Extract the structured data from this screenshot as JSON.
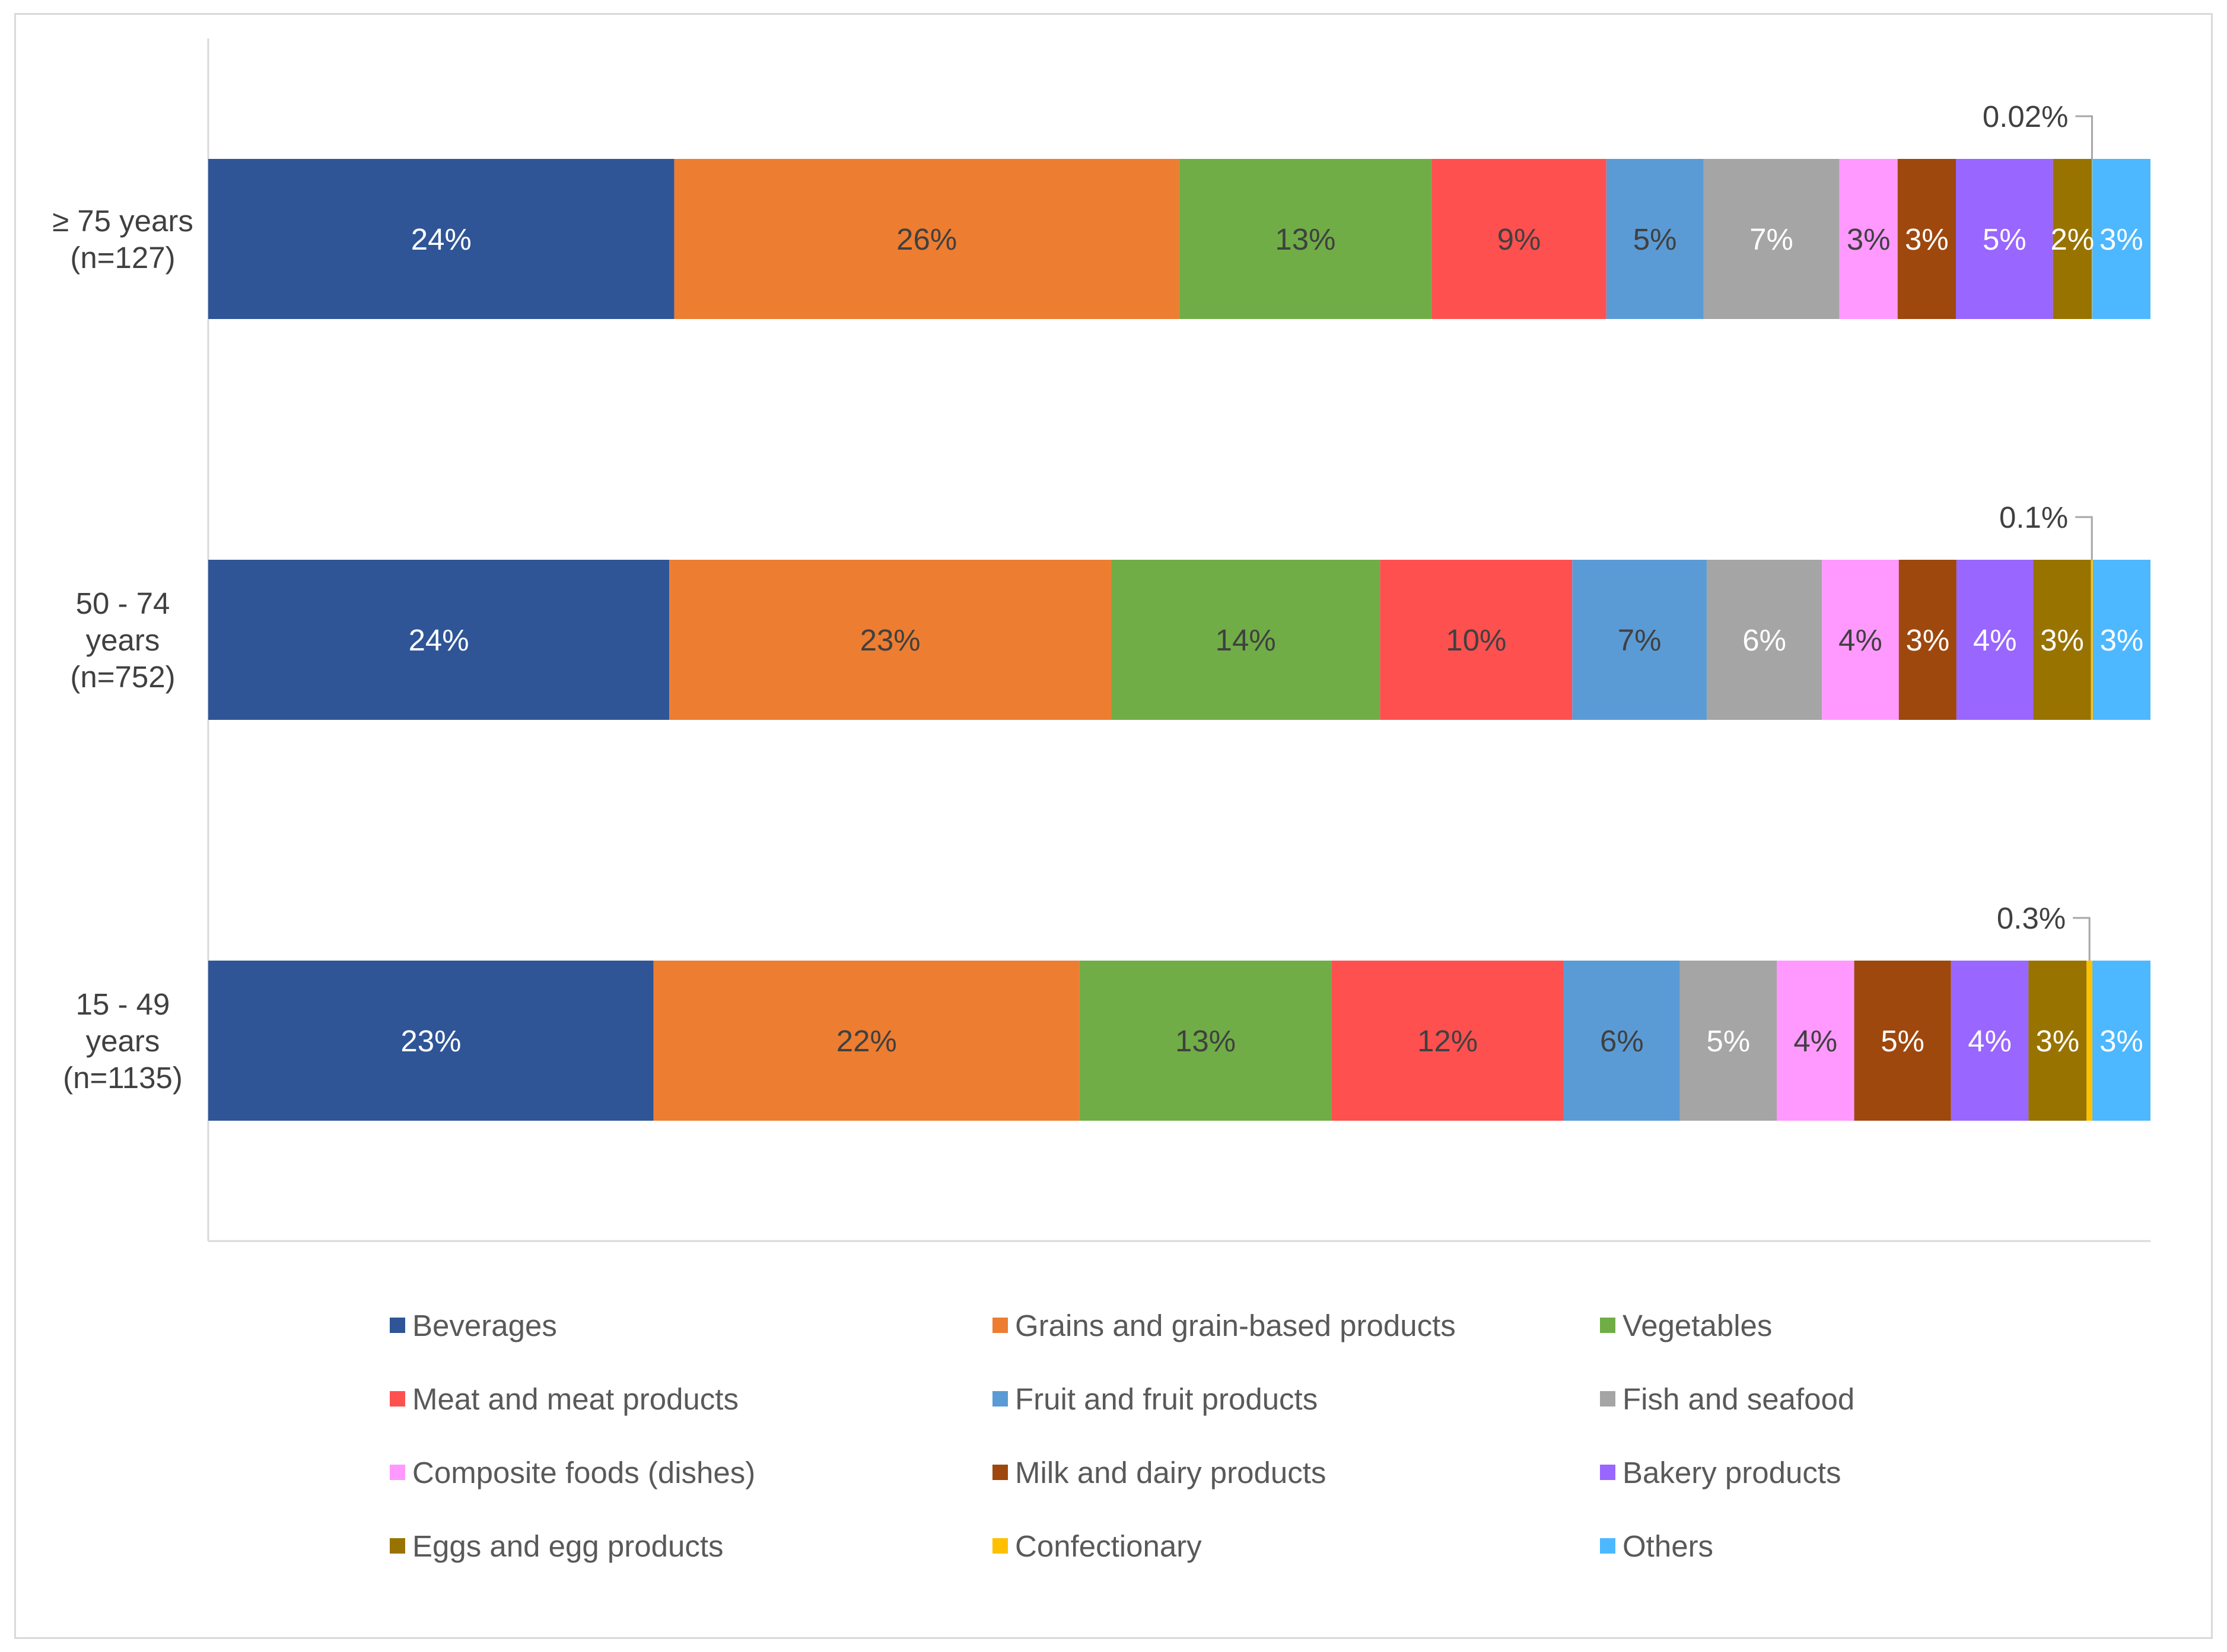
{
  "chart_data": {
    "type": "bar",
    "orientation": "horizontal",
    "stacked": true,
    "normalized_percent": true,
    "grid": false,
    "legend_position": "bottom",
    "categories": [
      "≥ 75 years (n=127)",
      "50 - 74 years (n=752)",
      "15 - 49 years (n=1135)"
    ],
    "category_lines": [
      [
        "≥ 75 years",
        "(n=127)"
      ],
      [
        "50 - 74",
        "years",
        "(n=752)"
      ],
      [
        "15 - 49",
        "years",
        "(n=1135)"
      ]
    ],
    "series": [
      {
        "name": "Beverages",
        "color": "#2F5597",
        "label_color": "#ffffff",
        "values": [
          24,
          24,
          23
        ],
        "labels": [
          "24%",
          "24%",
          "23%"
        ]
      },
      {
        "name": "Grains and grain-based products",
        "color": "#ED7D31",
        "label_color": "#404040",
        "values": [
          26,
          23,
          22
        ],
        "labels": [
          "26%",
          "23%",
          "22%"
        ]
      },
      {
        "name": "Vegetables",
        "color": "#70AD47",
        "label_color": "#404040",
        "values": [
          13,
          14,
          13
        ],
        "labels": [
          "13%",
          "14%",
          "13%"
        ]
      },
      {
        "name": "Meat and meat products",
        "color": "#FF5050",
        "label_color": "#404040",
        "values": [
          9,
          10,
          12
        ],
        "labels": [
          "9%",
          "10%",
          "12%"
        ]
      },
      {
        "name": "Fruit and fruit products",
        "color": "#5B9BD5",
        "label_color": "#404040",
        "values": [
          5,
          7,
          6
        ],
        "labels": [
          "5%",
          "7%",
          "6%"
        ]
      },
      {
        "name": "Fish and seafood",
        "color": "#A5A5A5",
        "label_color": "#ffffff",
        "values": [
          7,
          6,
          5
        ],
        "labels": [
          "7%",
          "6%",
          "5%"
        ]
      },
      {
        "name": "Composite foods (dishes)",
        "color": "#FF99FF",
        "label_color": "#404040",
        "values": [
          3,
          4,
          4
        ],
        "labels": [
          "3%",
          "4%",
          "4%"
        ]
      },
      {
        "name": "Milk and dairy products",
        "color": "#9E480E",
        "label_color": "#ffffff",
        "values": [
          3,
          3,
          5
        ],
        "labels": [
          "3%",
          "3%",
          "5%"
        ]
      },
      {
        "name": "Bakery products",
        "color": "#9966FF",
        "label_color": "#ffffff",
        "values": [
          5,
          4,
          4
        ],
        "labels": [
          "5%",
          "4%",
          "4%"
        ]
      },
      {
        "name": "Eggs and egg products",
        "color": "#997300",
        "label_color": "#ffffff",
        "values": [
          2,
          3,
          3
        ],
        "labels": [
          "2%",
          "3%",
          "3%"
        ]
      },
      {
        "name": "Confectionary",
        "color": "#FFC000",
        "label_color": "#404040",
        "values": [
          0.02,
          0.1,
          0.3
        ],
        "labels": [
          "0.02%",
          "0.1%",
          "0.3%"
        ],
        "callout": true
      },
      {
        "name": "Others",
        "color": "#4DB8FF",
        "label_color": "#ffffff",
        "values": [
          3,
          3,
          3
        ],
        "labels": [
          "3%",
          "3%",
          "3%"
        ]
      }
    ]
  }
}
